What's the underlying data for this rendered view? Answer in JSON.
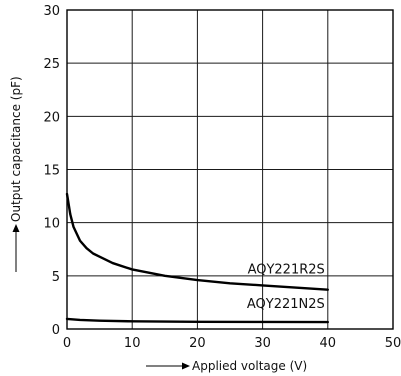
{
  "chart_data": {
    "type": "line",
    "xlabel": "Applied voltage (V)",
    "ylabel": "Output capacitance (pF)",
    "xlim": [
      0,
      50
    ],
    "ylim": [
      0,
      30
    ],
    "xticks": [
      0,
      10,
      20,
      30,
      40,
      50
    ],
    "yticks": [
      0,
      5,
      10,
      15,
      20,
      25,
      30
    ],
    "grid": true,
    "series": [
      {
        "name": "AQY221R2S",
        "x": [
          0,
          0.5,
          1,
          2,
          3,
          4,
          5,
          7,
          10,
          15,
          20,
          25,
          30,
          35,
          40
        ],
        "y": [
          12.7,
          10.8,
          9.6,
          8.3,
          7.6,
          7.1,
          6.8,
          6.2,
          5.6,
          5.0,
          4.6,
          4.3,
          4.1,
          3.9,
          3.7
        ]
      },
      {
        "name": "AQY221N2S",
        "x": [
          0,
          2,
          5,
          10,
          20,
          30,
          40
        ],
        "y": [
          0.95,
          0.85,
          0.78,
          0.72,
          0.68,
          0.66,
          0.65
        ]
      }
    ]
  }
}
